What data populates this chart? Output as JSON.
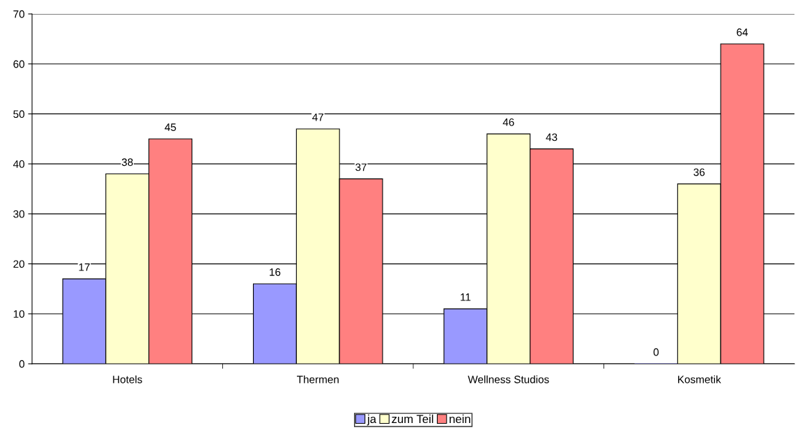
{
  "chart_data": {
    "type": "bar",
    "categories": [
      "Hotels",
      "Thermen",
      "Wellness Studios",
      "Kosmetik"
    ],
    "series": [
      {
        "name": "ja",
        "color": "#9999ff",
        "values": [
          17,
          16,
          11,
          0
        ]
      },
      {
        "name": "zum Teil",
        "color": "#ffffcc",
        "values": [
          38,
          47,
          46,
          36
        ]
      },
      {
        "name": "nein",
        "color": "#ff8080",
        "values": [
          45,
          37,
          43,
          64
        ]
      }
    ],
    "ylim": [
      0,
      70
    ],
    "yticks": [
      0,
      10,
      20,
      30,
      40,
      50,
      60,
      70
    ],
    "grid": "y",
    "legend": "bottom",
    "data_labels": true
  }
}
